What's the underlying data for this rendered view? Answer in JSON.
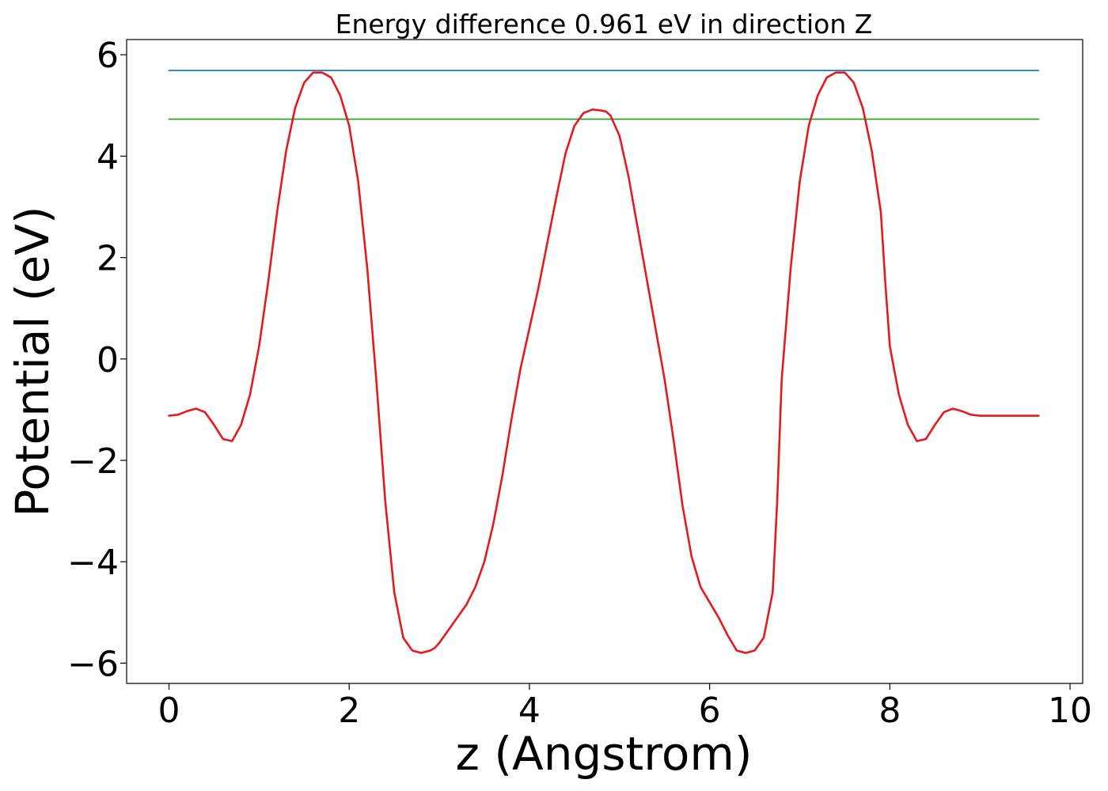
{
  "chart_data": {
    "type": "line",
    "title": "Energy difference 0.961 eV in direction Z",
    "xlabel": "z (Angstrom)",
    "ylabel": "Potential (eV)",
    "xlim": [
      -0.47,
      10.14
    ],
    "ylim": [
      -6.4,
      6.3
    ],
    "grid": false,
    "x_ticks": [
      0,
      2,
      4,
      6,
      8,
      10
    ],
    "y_ticks": [
      -6,
      -4,
      -2,
      0,
      2,
      4,
      6
    ],
    "x_tick_labels": [
      "0",
      "2",
      "4",
      "6",
      "8",
      "10"
    ],
    "y_tick_labels": [
      "−6",
      "−4",
      "−2",
      "0",
      "2",
      "4",
      "6"
    ],
    "colors": {
      "potential": "#e8191c",
      "upper_level": "#1f77b4",
      "lower_level": "#2ca02c"
    },
    "series": [
      {
        "key": "potential",
        "x": [
          0.0,
          0.1,
          0.2,
          0.3,
          0.4,
          0.5,
          0.6,
          0.7,
          0.8,
          0.9,
          1.0,
          1.1,
          1.2,
          1.3,
          1.4,
          1.5,
          1.6,
          1.7,
          1.8,
          1.9,
          2.0,
          2.1,
          2.2,
          2.3,
          2.4,
          2.5,
          2.6,
          2.7,
          2.8,
          2.9,
          2.95,
          3.0,
          3.1,
          3.2,
          3.3,
          3.4,
          3.5,
          3.6,
          3.7,
          3.8,
          3.9,
          4.0,
          4.1,
          4.2,
          4.3,
          4.4,
          4.5,
          4.6,
          4.7,
          4.8,
          4.85,
          4.9,
          5.0,
          5.1,
          5.2,
          5.3,
          5.4,
          5.5,
          5.6,
          5.7,
          5.8,
          5.9,
          6.0,
          6.1,
          6.2,
          6.3,
          6.4,
          6.5,
          6.6,
          6.7,
          6.75,
          6.8,
          6.9,
          7.0,
          7.1,
          7.2,
          7.3,
          7.4,
          7.5,
          7.6,
          7.7,
          7.8,
          7.9,
          7.95,
          8.0,
          8.1,
          8.2,
          8.3,
          8.4,
          8.5,
          8.6,
          8.7,
          8.8,
          8.9,
          9.0,
          9.1,
          9.2,
          9.3,
          9.4,
          9.5,
          9.6,
          9.65
        ],
        "y": [
          -1.12,
          -1.1,
          -1.03,
          -0.98,
          -1.05,
          -1.3,
          -1.58,
          -1.62,
          -1.3,
          -0.7,
          0.25,
          1.5,
          2.9,
          4.1,
          4.95,
          5.45,
          5.65,
          5.65,
          5.55,
          5.2,
          4.6,
          3.5,
          1.8,
          -0.4,
          -2.8,
          -4.6,
          -5.5,
          -5.75,
          -5.8,
          -5.75,
          -5.7,
          -5.6,
          -5.35,
          -5.1,
          -4.85,
          -4.5,
          -4.0,
          -3.25,
          -2.3,
          -1.2,
          -0.2,
          0.6,
          1.4,
          2.3,
          3.2,
          4.05,
          4.6,
          4.85,
          4.92,
          4.9,
          4.88,
          4.8,
          4.4,
          3.6,
          2.6,
          1.6,
          0.6,
          -0.4,
          -1.6,
          -2.9,
          -3.9,
          -4.5,
          -4.8,
          -5.1,
          -5.45,
          -5.75,
          -5.8,
          -5.75,
          -5.5,
          -4.6,
          -2.8,
          -0.4,
          1.8,
          3.5,
          4.6,
          5.2,
          5.55,
          5.65,
          5.65,
          5.45,
          4.95,
          4.1,
          2.9,
          1.5,
          0.25,
          -0.7,
          -1.3,
          -1.62,
          -1.58,
          -1.3,
          -1.05,
          -0.98,
          -1.03,
          -1.1,
          -1.12,
          -1.12,
          -1.12,
          -1.12,
          -1.12,
          -1.12,
          -1.12,
          -1.12
        ]
      },
      {
        "key": "upper_level",
        "x": [
          0.0,
          9.65
        ],
        "y": [
          5.69,
          5.69
        ]
      },
      {
        "key": "lower_level",
        "x": [
          0.0,
          9.65
        ],
        "y": [
          4.73,
          4.73
        ]
      }
    ]
  }
}
